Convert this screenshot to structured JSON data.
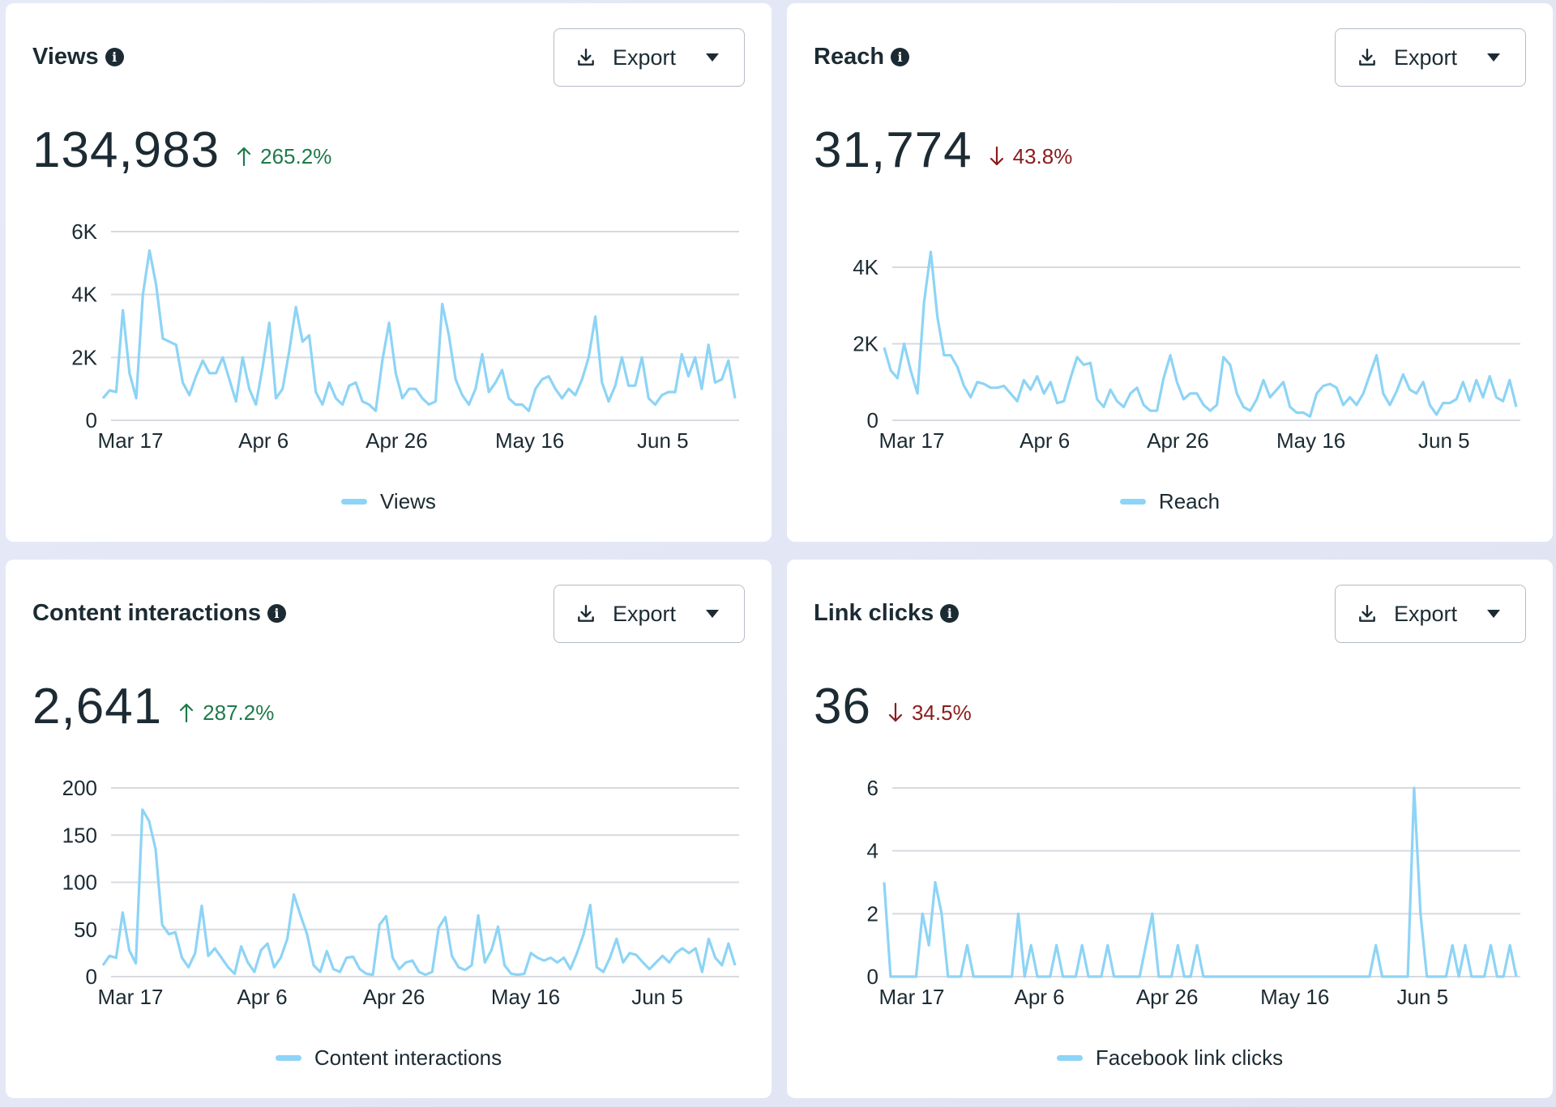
{
  "cards": [
    {
      "title": "Views",
      "export_label": "Export",
      "value": "134,983",
      "change": "265.2%",
      "direction": "up"
    },
    {
      "title": "Reach",
      "export_label": "Export",
      "value": "31,774",
      "change": "43.8%",
      "direction": "down"
    },
    {
      "title": "Content interactions",
      "export_label": "Export",
      "value": "2,641",
      "change": "287.2%",
      "direction": "up"
    },
    {
      "title": "Link clicks",
      "export_label": "Export",
      "value": "36",
      "change": "34.5%",
      "direction": "down"
    }
  ],
  "colors": {
    "series": "#8dd4f6",
    "up": "#1f7a4a",
    "down": "#8a1c1c"
  },
  "icons": [
    "info-icon",
    "download-icon",
    "caret-down-icon",
    "arrow-up-icon",
    "arrow-down-icon"
  ],
  "chart_data": [
    {
      "type": "line",
      "title": "Views",
      "x_start": "Mar 17",
      "x_end": "Jun 17",
      "x_ticks": [
        "Mar 17",
        "Apr 6",
        "Apr 26",
        "May 16",
        "Jun 5"
      ],
      "y_ticks": [
        0,
        2000,
        4000,
        6000
      ],
      "y_tick_labels": [
        "0",
        "2K",
        "4K",
        "6K"
      ],
      "ylim": [
        0,
        6000
      ],
      "grid": true,
      "legend": "bottom",
      "series": [
        {
          "name": "Views",
          "values": [
            700,
            950,
            900,
            3500,
            1500,
            700,
            4000,
            5400,
            4300,
            2600,
            2500,
            2400,
            1200,
            800,
            1400,
            1900,
            1500,
            1500,
            2000,
            1300,
            600,
            2000,
            1000,
            500,
            1700,
            3100,
            700,
            1000,
            2200,
            3600,
            2500,
            2700,
            900,
            500,
            1200,
            700,
            500,
            1100,
            1200,
            600,
            500,
            300,
            1900,
            3100,
            1500,
            700,
            1000,
            1000,
            700,
            500,
            600,
            3700,
            2700,
            1300,
            800,
            500,
            1000,
            2100,
            900,
            1200,
            1600,
            700,
            500,
            500,
            300,
            1000,
            1300,
            1400,
            1000,
            700,
            1000,
            800,
            1300,
            2000,
            3300,
            1200,
            600,
            1100,
            2000,
            1100,
            1100,
            2000,
            700,
            500,
            800,
            900,
            900,
            2100,
            1400,
            2000,
            1000,
            2400,
            1200,
            1300,
            1900,
            700
          ]
        }
      ]
    },
    {
      "type": "line",
      "title": "Reach",
      "x_start": "Mar 17",
      "x_end": "Jun 17",
      "x_ticks": [
        "Mar 17",
        "Apr 6",
        "Apr 26",
        "May 16",
        "Jun 5"
      ],
      "y_ticks": [
        0,
        2000,
        4000
      ],
      "y_tick_labels": [
        "0",
        "2K",
        "4K"
      ],
      "ylim": [
        0,
        4000
      ],
      "grid": true,
      "legend": "bottom",
      "series": [
        {
          "name": "Reach",
          "values": [
            1900,
            1300,
            1100,
            2000,
            1300,
            700,
            3100,
            4400,
            2700,
            1700,
            1700,
            1400,
            900,
            600,
            1000,
            950,
            850,
            850,
            900,
            700,
            500,
            1050,
            800,
            1150,
            700,
            1000,
            450,
            500,
            1100,
            1650,
            1450,
            1500,
            550,
            350,
            800,
            500,
            350,
            700,
            850,
            400,
            250,
            250,
            1100,
            1700,
            1000,
            550,
            700,
            700,
            400,
            250,
            400,
            1650,
            1450,
            700,
            350,
            250,
            550,
            1050,
            600,
            800,
            1000,
            350,
            200,
            200,
            100,
            700,
            900,
            950,
            850,
            400,
            600,
            400,
            700,
            1200,
            1700,
            700,
            400,
            750,
            1200,
            800,
            700,
            1000,
            400,
            150,
            450,
            450,
            550,
            1000,
            500,
            1050,
            600,
            1150,
            600,
            500,
            1050,
            350
          ]
        }
      ]
    },
    {
      "type": "line",
      "title": "Content interactions",
      "x_start": "Mar 17",
      "x_end": "Jun 17",
      "x_ticks": [
        "Mar 17",
        "Apr 6",
        "Apr 26",
        "May 16",
        "Jun 5"
      ],
      "y_ticks": [
        0,
        50,
        100,
        150,
        200
      ],
      "y_tick_labels": [
        "0",
        "50",
        "100",
        "150",
        "200"
      ],
      "ylim": [
        0,
        200
      ],
      "grid": true,
      "legend": "bottom",
      "series": [
        {
          "name": "Content interactions",
          "values": [
            12,
            22,
            20,
            68,
            28,
            14,
            177,
            165,
            135,
            55,
            45,
            47,
            20,
            10,
            25,
            75,
            22,
            30,
            20,
            10,
            3,
            32,
            15,
            5,
            28,
            35,
            10,
            20,
            40,
            87,
            65,
            45,
            12,
            5,
            27,
            8,
            5,
            20,
            21,
            8,
            3,
            2,
            55,
            64,
            20,
            8,
            15,
            17,
            5,
            2,
            5,
            52,
            63,
            22,
            10,
            7,
            12,
            65,
            15,
            28,
            53,
            12,
            3,
            2,
            3,
            25,
            20,
            17,
            20,
            15,
            20,
            8,
            25,
            45,
            76,
            10,
            5,
            20,
            40,
            15,
            25,
            23,
            15,
            8,
            15,
            22,
            15,
            25,
            30,
            25,
            30,
            5,
            40,
            20,
            12,
            35,
            12
          ]
        }
      ]
    },
    {
      "type": "line",
      "title": "Link clicks",
      "x_start": "Mar 17",
      "x_end": "Jun 17",
      "x_ticks": [
        "Mar 17",
        "Apr 6",
        "Apr 26",
        "May 16",
        "Jun 5"
      ],
      "y_ticks": [
        0,
        2,
        4,
        6
      ],
      "y_tick_labels": [
        "0",
        "2",
        "4",
        "6"
      ],
      "ylim": [
        0,
        6
      ],
      "grid": true,
      "legend": "bottom",
      "series": [
        {
          "name": "Facebook link clicks",
          "values": [
            3,
            0,
            0,
            0,
            0,
            0,
            2,
            1,
            3,
            2,
            0,
            0,
            0,
            1,
            0,
            0,
            0,
            0,
            0,
            0,
            0,
            2,
            0,
            1,
            0,
            0,
            0,
            1,
            0,
            0,
            0,
            1,
            0,
            0,
            0,
            1,
            0,
            0,
            0,
            0,
            0,
            1,
            2,
            0,
            0,
            0,
            1,
            0,
            0,
            1,
            0,
            0,
            0,
            0,
            0,
            0,
            0,
            0,
            0,
            0,
            0,
            0,
            0,
            0,
            0,
            0,
            0,
            0,
            0,
            0,
            0,
            0,
            0,
            0,
            0,
            0,
            0,
            1,
            0,
            0,
            0,
            0,
            0,
            6,
            2,
            0,
            0,
            0,
            0,
            1,
            0,
            1,
            0,
            0,
            0,
            1,
            0,
            0,
            1,
            0
          ]
        }
      ]
    }
  ]
}
